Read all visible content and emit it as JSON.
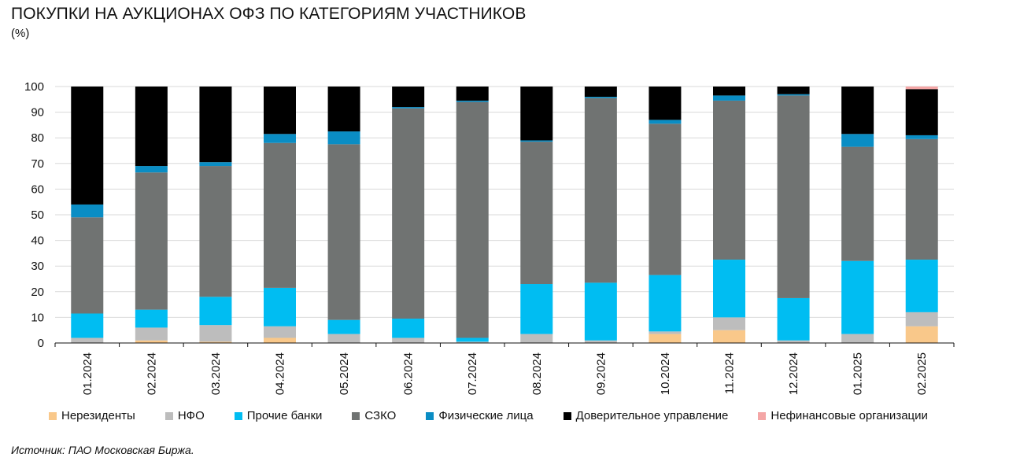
{
  "title": "ПОКУПКИ НА АУКЦИОНАХ ОФЗ ПО КАТЕГОРИЯМ УЧАСТНИКОВ",
  "subtitle": "(%)",
  "source": "Источник: ПАО Московская Биржа.",
  "chart_data": {
    "type": "bar",
    "stacked": true,
    "ylim": [
      0,
      100
    ],
    "yticks": [
      0,
      10,
      20,
      30,
      40,
      50,
      60,
      70,
      80,
      90,
      100
    ],
    "grid": true,
    "legend_position": "bottom",
    "categories": [
      "01.2024",
      "02.2024",
      "03.2024",
      "04.2024",
      "05.2024",
      "06.2024",
      "07.2024",
      "08.2024",
      "09.2024",
      "10.2024",
      "11.2024",
      "12.2024",
      "01.2025",
      "02.2025"
    ],
    "series": [
      {
        "name": "Нерезиденты",
        "color": "#F9C88A",
        "values": [
          0,
          1,
          0.5,
          2,
          0,
          0,
          0,
          0,
          0,
          3.5,
          5,
          0,
          0,
          6.5
        ]
      },
      {
        "name": "НФО",
        "color": "#BDBDBD",
        "values": [
          2,
          5,
          6.5,
          4.5,
          3.5,
          2,
          0.5,
          3.5,
          1,
          1,
          5,
          1,
          3.5,
          5.5
        ]
      },
      {
        "name": "Прочие банки",
        "color": "#00BDF2",
        "values": [
          9.5,
          7,
          11,
          15,
          5.5,
          7.5,
          1.5,
          19.5,
          22.5,
          22,
          22.5,
          16.5,
          28.5,
          20.5
        ]
      },
      {
        "name": "СЗКО",
        "color": "#707372",
        "values": [
          37.5,
          53.5,
          51,
          56.5,
          68.5,
          82,
          92,
          55.5,
          72,
          59,
          62,
          79,
          44.5,
          47
        ]
      },
      {
        "name": "Физические лица",
        "color": "#0A8DC4",
        "values": [
          5,
          2.5,
          1.5,
          3.5,
          5,
          0.5,
          0.5,
          0.5,
          0.5,
          1.5,
          2,
          0.5,
          5,
          1.5
        ]
      },
      {
        "name": "Доверительное управление",
        "color": "#000000",
        "values": [
          46,
          31,
          29.5,
          18.5,
          17.5,
          8,
          5.5,
          21,
          4,
          13,
          3.5,
          3,
          18.5,
          18
        ]
      },
      {
        "name": "Нефинансовые организации",
        "color": "#F4A6A6",
        "values": [
          0,
          0,
          0,
          0,
          0,
          0,
          0,
          0,
          0,
          0,
          0,
          0,
          0,
          1
        ]
      }
    ]
  }
}
